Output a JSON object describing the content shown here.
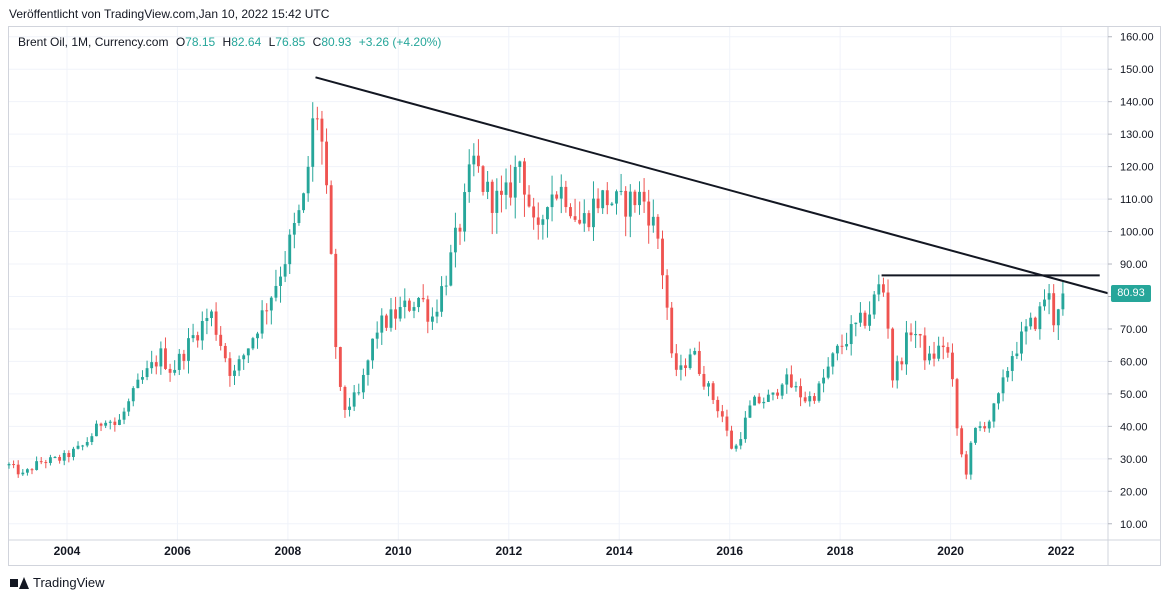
{
  "header": {
    "published": "Veröffentlicht von TradingView.com,Jan 10, 2022 15:42 UTC"
  },
  "legend": {
    "symbol": "Brent Oil, 1M, Currency.com",
    "o_label": "O",
    "o_value": "78.15",
    "h_label": "H",
    "h_value": "82.64",
    "l_label": "L",
    "l_value": "76.85",
    "c_label": "C",
    "c_value": "80.93",
    "change": "+3.26 (+4.20%)"
  },
  "price_tag": "80.93",
  "footer": {
    "brand": "TradingView"
  },
  "colors": {
    "up": "#26a69a",
    "down": "#ef5350",
    "trendline": "#131722",
    "grid": "#f0f3fa"
  },
  "chart_data": {
    "type": "candlestick",
    "interval": "1M",
    "ylim": [
      5,
      163
    ],
    "y_ticks": [
      "10.00",
      "20.00",
      "30.00",
      "40.00",
      "50.00",
      "60.00",
      "70.00",
      "80.00",
      "90.00",
      "100.00",
      "110.00",
      "120.00",
      "130.00",
      "140.00",
      "150.00",
      "160.00"
    ],
    "x_ticks": [
      "2004",
      "2006",
      "2008",
      "2010",
      "2012",
      "2014",
      "2016",
      "2018",
      "2020",
      "2022"
    ],
    "x_range": [
      2002.95,
      2022.85
    ],
    "price_path": [
      [
        2002.95,
        28
      ],
      [
        2003.2,
        25
      ],
      [
        2003.5,
        29
      ],
      [
        2003.9,
        30
      ],
      [
        2004.3,
        34
      ],
      [
        2004.7,
        43
      ],
      [
        2004.9,
        40
      ],
      [
        2005.3,
        53
      ],
      [
        2005.7,
        62
      ],
      [
        2005.9,
        57
      ],
      [
        2006.3,
        68
      ],
      [
        2006.6,
        75
      ],
      [
        2006.9,
        60
      ],
      [
        2007.0,
        55
      ],
      [
        2007.4,
        69
      ],
      [
        2007.8,
        85
      ],
      [
        2007.95,
        92
      ],
      [
        2008.3,
        110
      ],
      [
        2008.5,
        140
      ],
      [
        2008.6,
        130
      ],
      [
        2008.75,
        100
      ],
      [
        2008.9,
        55
      ],
      [
        2009.0,
        45
      ],
      [
        2009.3,
        50
      ],
      [
        2009.6,
        70
      ],
      [
        2010.0,
        75
      ],
      [
        2010.4,
        80
      ],
      [
        2010.6,
        73
      ],
      [
        2010.9,
        88
      ],
      [
        2011.2,
        108
      ],
      [
        2011.35,
        122
      ],
      [
        2011.6,
        112
      ],
      [
        2011.9,
        108
      ],
      [
        2012.2,
        122
      ],
      [
        2012.4,
        106
      ],
      [
        2012.5,
        95
      ],
      [
        2012.7,
        112
      ],
      [
        2013.0,
        113
      ],
      [
        2013.3,
        102
      ],
      [
        2013.6,
        110
      ],
      [
        2013.8,
        110
      ],
      [
        2014.0,
        108
      ],
      [
        2014.4,
        111
      ],
      [
        2014.5,
        108
      ],
      [
        2014.7,
        98
      ],
      [
        2014.85,
        80
      ],
      [
        2014.95,
        60
      ],
      [
        2015.1,
        56
      ],
      [
        2015.3,
        64
      ],
      [
        2015.6,
        52
      ],
      [
        2015.9,
        42
      ],
      [
        2016.0,
        34
      ],
      [
        2016.1,
        33
      ],
      [
        2016.4,
        47
      ],
      [
        2016.8,
        49
      ],
      [
        2016.95,
        55
      ],
      [
        2017.4,
        48
      ],
      [
        2017.6,
        51
      ],
      [
        2017.9,
        62
      ],
      [
        2018.2,
        69
      ],
      [
        2018.5,
        74
      ],
      [
        2018.75,
        85
      ],
      [
        2018.85,
        75
      ],
      [
        2018.95,
        55
      ],
      [
        2019.1,
        61
      ],
      [
        2019.3,
        71
      ],
      [
        2019.6,
        60
      ],
      [
        2019.9,
        66
      ],
      [
        2020.0,
        58
      ],
      [
        2020.15,
        34
      ],
      [
        2020.3,
        25
      ],
      [
        2020.4,
        38
      ],
      [
        2020.7,
        42
      ],
      [
        2020.9,
        50
      ],
      [
        2021.1,
        62
      ],
      [
        2021.4,
        70
      ],
      [
        2021.6,
        74
      ],
      [
        2021.75,
        83
      ],
      [
        2021.85,
        72
      ],
      [
        2021.95,
        78
      ],
      [
        2022.05,
        80.93
      ]
    ],
    "trendlines": [
      {
        "type": "descending",
        "x1": 2008.5,
        "y1": 147.5,
        "x2": 2022.85,
        "y2": 81
      },
      {
        "type": "horizontal",
        "x1": 2018.75,
        "y1": 86.5,
        "x2": 2022.7,
        "y2": 86.5
      }
    ],
    "last_close": 80.93
  }
}
